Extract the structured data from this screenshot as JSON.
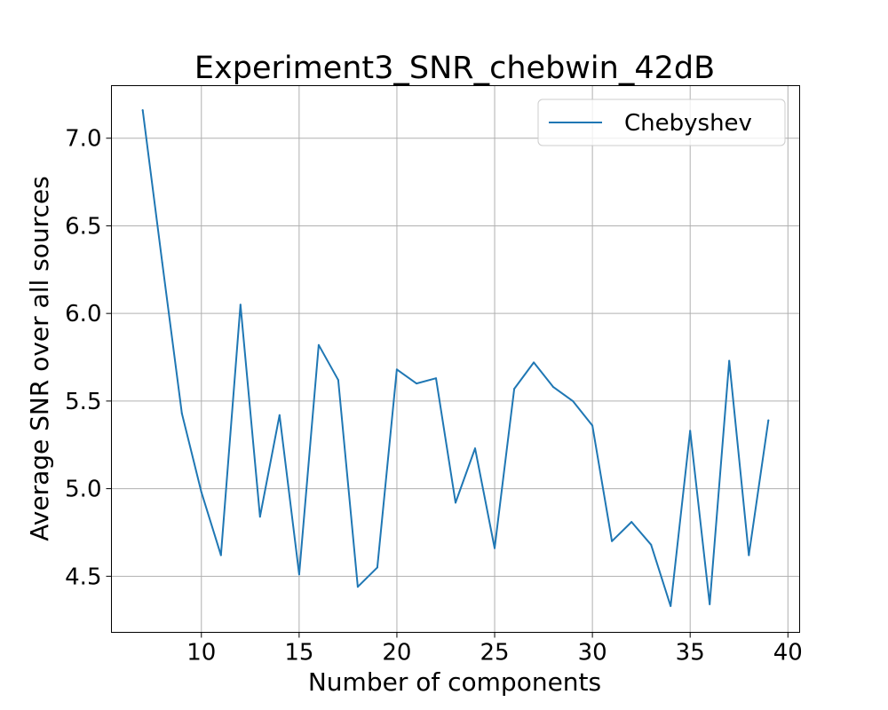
{
  "chart_data": {
    "type": "line",
    "title": "Experiment3_SNR_chebwin_42dB",
    "xlabel": "Number of components",
    "ylabel": "Average SNR over all sources",
    "xlim": [
      5.4,
      40.6
    ],
    "ylim": [
      4.18,
      7.3
    ],
    "xticks": [
      10,
      15,
      20,
      25,
      30,
      35,
      40
    ],
    "yticks": [
      4.5,
      5.0,
      5.5,
      6.0,
      6.5,
      7.0
    ],
    "grid": true,
    "legend_position": "top-right",
    "series": [
      {
        "name": "Chebyshev",
        "color": "#1f77b4",
        "x": [
          7,
          8,
          9,
          10,
          11,
          12,
          13,
          14,
          15,
          16,
          17,
          18,
          19,
          20,
          21,
          22,
          23,
          24,
          25,
          26,
          27,
          28,
          29,
          30,
          31,
          32,
          33,
          34,
          35,
          36,
          37,
          38,
          39
        ],
        "y": [
          7.16,
          6.29,
          5.43,
          4.98,
          4.62,
          6.05,
          4.84,
          5.42,
          4.51,
          5.82,
          5.62,
          4.44,
          4.55,
          5.68,
          5.6,
          5.63,
          4.92,
          5.23,
          4.66,
          5.57,
          5.72,
          5.58,
          5.5,
          5.36,
          4.7,
          4.81,
          4.68,
          4.33,
          5.33,
          4.34,
          5.73,
          4.62,
          5.39
        ]
      }
    ]
  }
}
